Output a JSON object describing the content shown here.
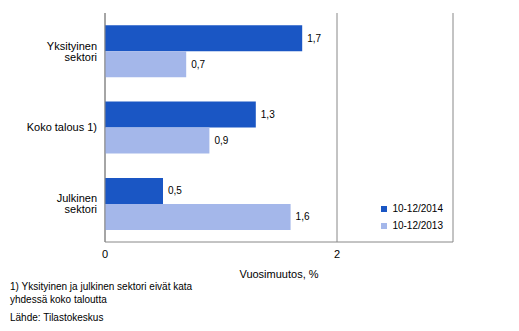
{
  "chart_data": {
    "type": "bar",
    "orientation": "horizontal",
    "categories": [
      "Yksityinen sektori",
      "Koko talous 1)",
      "Julkinen sektori"
    ],
    "series": [
      {
        "name": "10-12/2014",
        "color": "#1a56c4",
        "values": [
          1.7,
          1.3,
          0.5
        ],
        "value_labels": [
          "1,7",
          "1,3",
          "0,5"
        ]
      },
      {
        "name": "10-12/2013",
        "color": "#a4b7ea",
        "values": [
          0.7,
          0.9,
          1.6
        ],
        "value_labels": [
          "0,7",
          "0,9",
          "1,6"
        ]
      }
    ],
    "xlabel": "Vuosimuutos, %",
    "xlim": [
      0,
      3
    ],
    "xticks": [
      0,
      2
    ],
    "grid": true,
    "data_labels": true,
    "legend": "lower right",
    "annotations": [
      "1) Yksityinen ja julkinen sektori eivät kata yhdessä koko taloutta",
      "Lähde: Tilastokeskus"
    ]
  }
}
